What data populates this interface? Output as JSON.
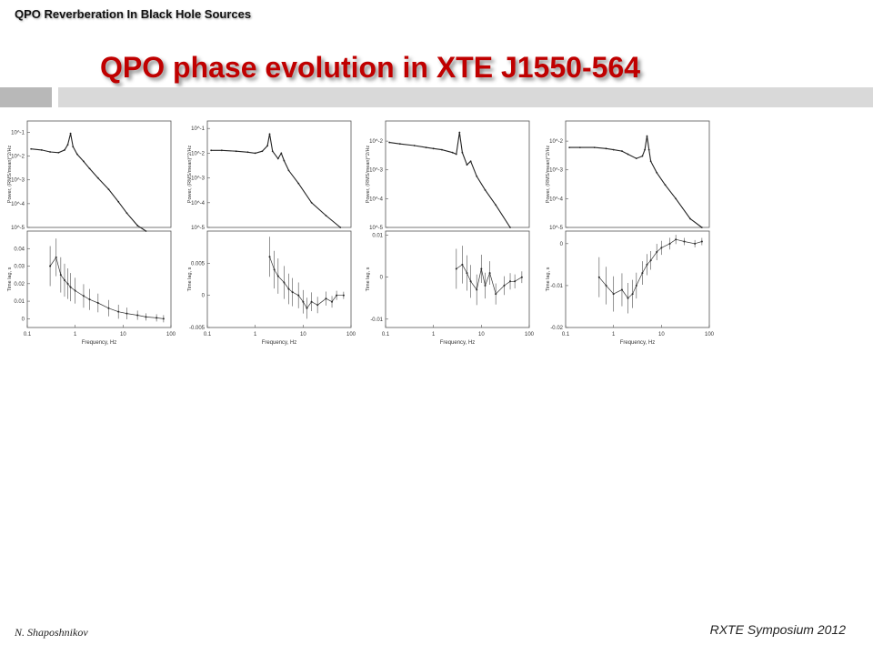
{
  "slide": {
    "header": "QPO Reverberation In Black Hole Sources",
    "title": "QPO phase evolution in XTE J1550-564",
    "author": "N. Shaposhnikov",
    "event": "RXTE Symposium 2012"
  },
  "chart_data": [
    {
      "type": "line",
      "panel": "power",
      "xlabel": "",
      "ylabel": "Power, (RMS/mean)^2/Hz",
      "xscale": "log",
      "yscale": "log",
      "xlim": [
        0.1,
        100
      ],
      "ylim": [
        1e-05,
        0.3
      ],
      "yticks": [
        "10^-1",
        "10^-2",
        "10^-3",
        "10^-4",
        "10^-5"
      ],
      "series": [
        {
          "x": [
            0.12,
            0.2,
            0.3,
            0.45,
            0.6,
            0.7,
            0.8,
            0.9,
            1.1,
            1.5,
            2,
            3,
            5,
            8,
            12,
            20,
            30
          ],
          "y": [
            0.02,
            0.018,
            0.015,
            0.014,
            0.018,
            0.03,
            0.09,
            0.025,
            0.012,
            0.006,
            0.003,
            0.0012,
            0.0004,
            0.00012,
            4e-05,
            1.2e-05,
            7e-06
          ]
        }
      ]
    },
    {
      "type": "scatter",
      "panel": "lag",
      "xlabel": "Frequency, Hz",
      "ylabel": "Time lag, s",
      "xscale": "log",
      "xlim": [
        0.1,
        100
      ],
      "ylim": [
        -0.005,
        0.05
      ],
      "xticks": [
        "0.1",
        "1",
        "10",
        "100"
      ],
      "yticks": [
        "0.04",
        "0.03",
        "0.02",
        "0.01",
        "0"
      ],
      "series": [
        {
          "x": [
            0.3,
            0.4,
            0.5,
            0.6,
            0.7,
            0.8,
            1,
            1.5,
            2,
            3,
            5,
            8,
            12,
            20,
            30,
            50,
            70
          ],
          "y": [
            0.03,
            0.035,
            0.025,
            0.022,
            0.02,
            0.018,
            0.016,
            0.013,
            0.011,
            0.009,
            0.006,
            0.004,
            0.003,
            0.002,
            0.001,
            0.0005,
            0.0
          ]
        }
      ]
    },
    {
      "type": "line",
      "panel": "power",
      "xlabel": "",
      "ylabel": "Power, (RMS/mean)^2/Hz",
      "xscale": "log",
      "yscale": "log",
      "xlim": [
        0.1,
        100
      ],
      "ylim": [
        1e-05,
        0.2
      ],
      "yticks": [
        "10^-1",
        "10^-2",
        "10^-3",
        "10^-4",
        "10^-5"
      ],
      "series": [
        {
          "x": [
            0.12,
            0.2,
            0.4,
            0.7,
            1,
            1.4,
            1.8,
            2,
            2.3,
            3,
            3.5,
            4,
            5,
            8,
            15,
            30,
            60
          ],
          "y": [
            0.013,
            0.013,
            0.012,
            0.011,
            0.01,
            0.012,
            0.02,
            0.06,
            0.012,
            0.006,
            0.01,
            0.005,
            0.002,
            0.0006,
            0.0001,
            3e-05,
            1e-05
          ]
        }
      ]
    },
    {
      "type": "scatter",
      "panel": "lag",
      "xlabel": "Frequency, Hz",
      "ylabel": "Time lag, s",
      "xscale": "log",
      "xlim": [
        0.1,
        100
      ],
      "ylim": [
        -0.005,
        0.01
      ],
      "xticks": [
        "0.1",
        "1",
        "10",
        "100"
      ],
      "yticks": [
        "0.005",
        "0",
        "-0.005"
      ],
      "series": [
        {
          "x": [
            2,
            2.5,
            3,
            4,
            5,
            6,
            8,
            10,
            12,
            15,
            20,
            30,
            40,
            50,
            70
          ],
          "y": [
            0.006,
            0.004,
            0.003,
            0.002,
            0.001,
            0.0005,
            0,
            -0.001,
            -0.002,
            -0.001,
            -0.0015,
            -0.0005,
            -0.001,
            0,
            0
          ]
        }
      ]
    },
    {
      "type": "line",
      "panel": "power",
      "xlabel": "",
      "ylabel": "Power, (RMS/mean)^2/Hz",
      "xscale": "log",
      "yscale": "log",
      "xlim": [
        0.1,
        100
      ],
      "ylim": [
        1e-05,
        0.05
      ],
      "yticks": [
        "10^-2",
        "10^-3",
        "10^-4",
        "10^-5"
      ],
      "series": [
        {
          "x": [
            0.12,
            0.2,
            0.4,
            0.7,
            1,
            1.5,
            2.5,
            3,
            3.5,
            4,
            5,
            6,
            8,
            12,
            20,
            40
          ],
          "y": [
            0.009,
            0.008,
            0.007,
            0.006,
            0.0055,
            0.005,
            0.004,
            0.0035,
            0.02,
            0.004,
            0.0015,
            0.002,
            0.0006,
            0.0002,
            6e-05,
            1e-05
          ]
        }
      ]
    },
    {
      "type": "scatter",
      "panel": "lag",
      "xlabel": "Frequency, Hz",
      "ylabel": "Time lag, s",
      "xscale": "log",
      "xlim": [
        0.1,
        100
      ],
      "ylim": [
        -0.012,
        0.011
      ],
      "xticks": [
        "0.1",
        "1",
        "10",
        "100"
      ],
      "yticks": [
        "0.01",
        "0",
        "-0.01"
      ],
      "series": [
        {
          "x": [
            3,
            4,
            5,
            6,
            8,
            10,
            12,
            15,
            20,
            30,
            40,
            50,
            70
          ],
          "y": [
            0.002,
            0.003,
            0.001,
            -0.001,
            -0.003,
            0.002,
            -0.002,
            0.001,
            -0.004,
            -0.002,
            -0.001,
            -0.001,
            0
          ]
        }
      ]
    },
    {
      "type": "line",
      "panel": "power",
      "xlabel": "",
      "ylabel": "Power, (RMS/mean)^2/Hz",
      "xscale": "log",
      "yscale": "log",
      "xlim": [
        0.1,
        100
      ],
      "ylim": [
        1e-05,
        0.05
      ],
      "yticks": [
        "10^-2",
        "10^-3",
        "10^-4",
        "10^-5"
      ],
      "series": [
        {
          "x": [
            0.12,
            0.2,
            0.4,
            0.7,
            1,
            1.5,
            2,
            3,
            4,
            4.5,
            5,
            5.5,
            6,
            8,
            12,
            20,
            40,
            70
          ],
          "y": [
            0.006,
            0.006,
            0.006,
            0.0055,
            0.005,
            0.0045,
            0.0035,
            0.0025,
            0.003,
            0.005,
            0.015,
            0.005,
            0.002,
            0.0008,
            0.0003,
            0.0001,
            2e-05,
            1e-05
          ]
        }
      ]
    },
    {
      "type": "scatter",
      "panel": "lag",
      "xlabel": "Frequency, Hz",
      "ylabel": "Time lag, s",
      "xscale": "log",
      "xlim": [
        0.1,
        100
      ],
      "ylim": [
        -0.02,
        0.003
      ],
      "xticks": [
        "0.1",
        "1",
        "10",
        "100"
      ],
      "yticks": [
        "0",
        "-0.01",
        "-0.02"
      ],
      "series": [
        {
          "x": [
            0.5,
            0.7,
            1,
            1.5,
            2,
            2.5,
            3,
            4,
            5,
            6,
            8,
            10,
            15,
            20,
            30,
            50,
            70
          ],
          "y": [
            -0.008,
            -0.01,
            -0.012,
            -0.011,
            -0.013,
            -0.012,
            -0.01,
            -0.007,
            -0.005,
            -0.004,
            -0.002,
            -0.001,
            0,
            0.001,
            0.0005,
            0,
            0.0005
          ]
        }
      ]
    }
  ]
}
